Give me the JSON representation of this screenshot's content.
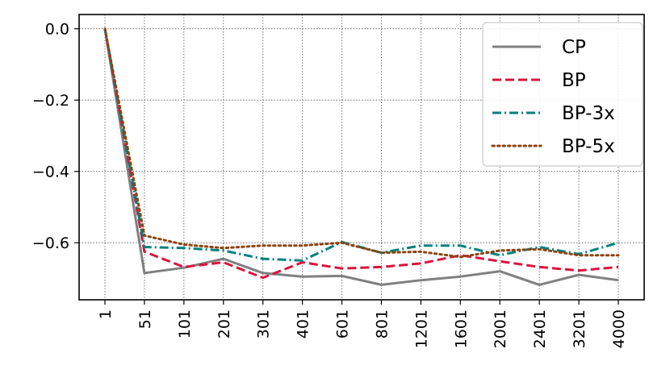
{
  "chart_data": {
    "type": "line",
    "title": "",
    "xlabel": "",
    "ylabel": "",
    "x": [
      "1",
      "51",
      "101",
      "201",
      "301",
      "401",
      "601",
      "801",
      "1201",
      "1601",
      "2001",
      "2401",
      "3201",
      "4000"
    ],
    "yticks": [
      "0.0",
      "−0.2",
      "−0.4",
      "−0.6"
    ],
    "ytick_values": [
      0.0,
      -0.2,
      -0.4,
      -0.6
    ],
    "ylim": [
      -0.76,
      0.04
    ],
    "grid": true,
    "legend_position": "top-right",
    "series": [
      {
        "name": "CP",
        "color": "#808080",
        "dash": "solid",
        "values": [
          0.0,
          -0.685,
          -0.67,
          -0.645,
          -0.685,
          -0.695,
          -0.693,
          -0.718,
          -0.705,
          -0.695,
          -0.68,
          -0.718,
          -0.69,
          -0.705
        ]
      },
      {
        "name": "BP",
        "color": "#dc143c",
        "dash": "dashed",
        "values": [
          0.0,
          -0.625,
          -0.668,
          -0.655,
          -0.698,
          -0.655,
          -0.672,
          -0.668,
          -0.658,
          -0.635,
          -0.652,
          -0.668,
          -0.678,
          -0.668
        ]
      },
      {
        "name": "BP-3x",
        "color": "#008080",
        "dash": "dashdot",
        "values": [
          0.0,
          -0.612,
          -0.615,
          -0.622,
          -0.645,
          -0.65,
          -0.598,
          -0.628,
          -0.608,
          -0.608,
          -0.635,
          -0.612,
          -0.632,
          -0.6
        ]
      },
      {
        "name": "BP-5x",
        "color": "#8b4513",
        "dash": "dotted",
        "values": [
          0.0,
          -0.58,
          -0.605,
          -0.615,
          -0.608,
          -0.608,
          -0.6,
          -0.628,
          -0.625,
          -0.64,
          -0.622,
          -0.618,
          -0.635,
          -0.635
        ]
      }
    ]
  }
}
